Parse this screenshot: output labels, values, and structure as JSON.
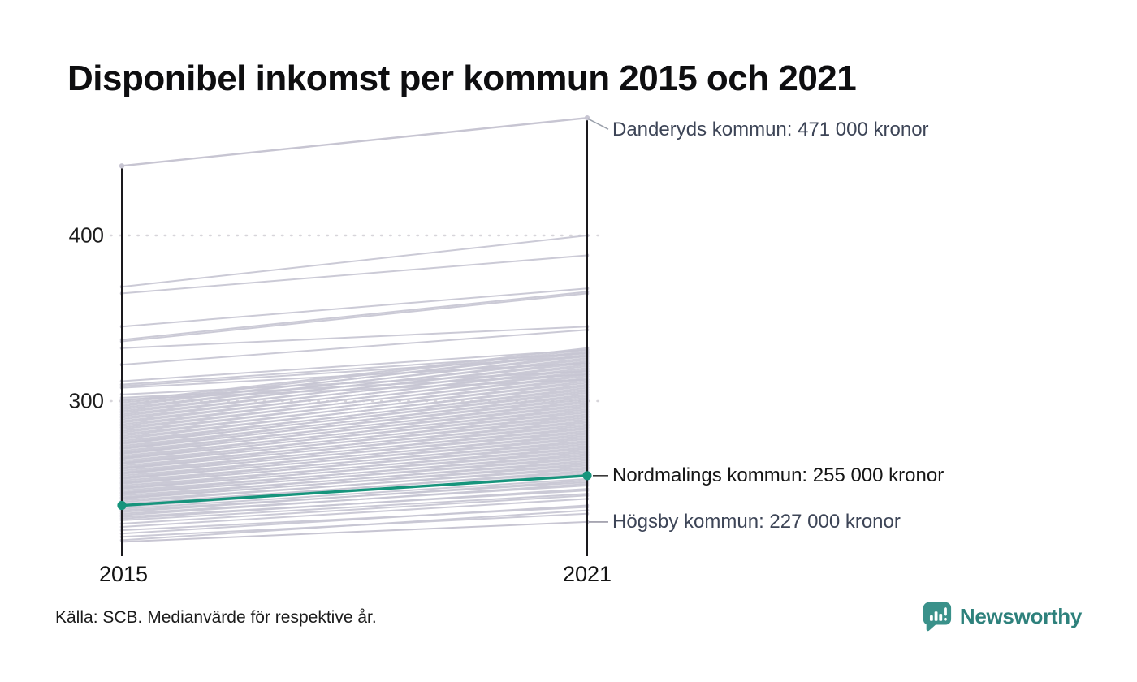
{
  "title": "Disponibel inkomst per kommun 2015 och 2021",
  "chart_data": {
    "type": "line",
    "subtype": "slope",
    "title": "Disponibel inkomst per kommun 2015 och 2021",
    "x_labels": [
      "2015",
      "2021"
    ],
    "y_ticks": [
      {
        "value": 400,
        "label": "400"
      },
      {
        "value": 300,
        "label": "300"
      }
    ],
    "ylim": [
      210,
      480
    ],
    "grid": "dotted-horizontal",
    "unit": "tusental kronor",
    "annotated_top": {
      "name": "Danderyds kommun",
      "values": [
        442,
        471
      ],
      "label": "Danderyds kommun: 471 000 kronor"
    },
    "highlighted": {
      "name": "Nordmalings kommun",
      "values": [
        237,
        255
      ],
      "label": "Nordmalings kommun: 255 000 kronor"
    },
    "annotated_bottom": {
      "name": "Högsby kommun",
      "values": [
        215,
        227
      ],
      "label": "Högsby kommun: 227 000 kronor"
    },
    "background_series": [
      [
        369,
        400
      ],
      [
        365,
        388
      ],
      [
        345,
        368
      ],
      [
        337,
        366
      ],
      [
        336,
        365
      ],
      [
        332,
        345
      ],
      [
        322,
        343
      ],
      [
        312,
        331
      ],
      [
        310,
        329
      ],
      [
        309,
        327
      ],
      [
        308,
        323
      ],
      [
        304,
        318
      ],
      [
        302,
        316
      ],
      [
        301,
        313
      ],
      [
        216,
        234
      ],
      [
        218,
        232
      ],
      [
        220,
        237
      ],
      [
        222,
        236
      ],
      [
        224,
        241
      ],
      [
        226,
        243
      ],
      [
        228,
        244
      ],
      [
        229,
        247
      ],
      [
        230,
        246
      ],
      [
        231,
        250
      ],
      [
        232,
        249
      ],
      [
        233,
        252
      ],
      [
        234,
        251
      ],
      [
        235,
        253
      ],
      [
        236,
        256
      ],
      [
        237,
        258
      ],
      [
        238,
        257
      ],
      [
        239,
        260
      ],
      [
        240,
        259
      ],
      [
        241,
        262
      ],
      [
        241.5,
        261
      ],
      [
        242,
        264
      ],
      [
        243,
        263
      ],
      [
        244,
        266
      ],
      [
        244.5,
        265
      ],
      [
        245,
        268
      ],
      [
        246,
        267
      ],
      [
        247,
        270
      ],
      [
        247.5,
        269
      ],
      [
        248,
        272
      ],
      [
        249,
        271
      ],
      [
        250,
        274
      ],
      [
        250.5,
        273
      ],
      [
        251,
        276
      ],
      [
        252,
        275
      ],
      [
        253,
        278
      ],
      [
        253.5,
        277
      ],
      [
        254,
        280
      ],
      [
        255,
        279
      ],
      [
        256,
        282
      ],
      [
        256.5,
        281
      ],
      [
        257,
        284
      ],
      [
        258,
        283
      ],
      [
        259,
        286
      ],
      [
        259.5,
        285
      ],
      [
        260,
        288
      ],
      [
        261,
        287
      ],
      [
        262,
        290
      ],
      [
        262.5,
        289
      ],
      [
        263,
        292
      ],
      [
        264,
        291
      ],
      [
        265,
        294
      ],
      [
        265.5,
        293
      ],
      [
        266,
        296
      ],
      [
        267,
        295
      ],
      [
        268,
        298
      ],
      [
        268.5,
        297
      ],
      [
        269,
        300
      ],
      [
        270,
        299
      ],
      [
        271,
        302
      ],
      [
        271.5,
        301
      ],
      [
        272,
        304
      ],
      [
        273,
        303
      ],
      [
        274,
        306
      ],
      [
        274.5,
        305
      ],
      [
        275,
        308
      ],
      [
        276,
        307
      ],
      [
        277,
        310
      ],
      [
        278,
        309
      ],
      [
        279,
        312
      ],
      [
        280,
        311
      ],
      [
        281,
        314
      ],
      [
        282,
        313
      ],
      [
        283,
        316
      ],
      [
        284,
        315
      ],
      [
        285,
        318
      ],
      [
        286,
        317
      ],
      [
        287,
        320
      ],
      [
        288,
        319
      ],
      [
        289,
        322
      ],
      [
        290,
        321
      ],
      [
        291,
        324
      ],
      [
        292,
        323
      ],
      [
        293,
        326
      ],
      [
        294,
        325
      ],
      [
        295,
        328
      ],
      [
        296,
        327
      ],
      [
        297,
        330
      ],
      [
        298,
        329
      ],
      [
        299,
        331
      ],
      [
        300,
        332
      ]
    ],
    "colors": {
      "line": "#c7c5d2",
      "highlight": "#16947c",
      "axis": "#1a191d",
      "grid": "#d7d5da",
      "annotation_text": "#3d4557",
      "text": "#1b1b1b"
    }
  },
  "footer": {
    "source": "Källa: SCB. Medianvärde för respektive år.",
    "brand": "Newsworthy",
    "brand_color": "#2e817c",
    "brand_icon": "speech-bubble-bar-chart-icon"
  }
}
